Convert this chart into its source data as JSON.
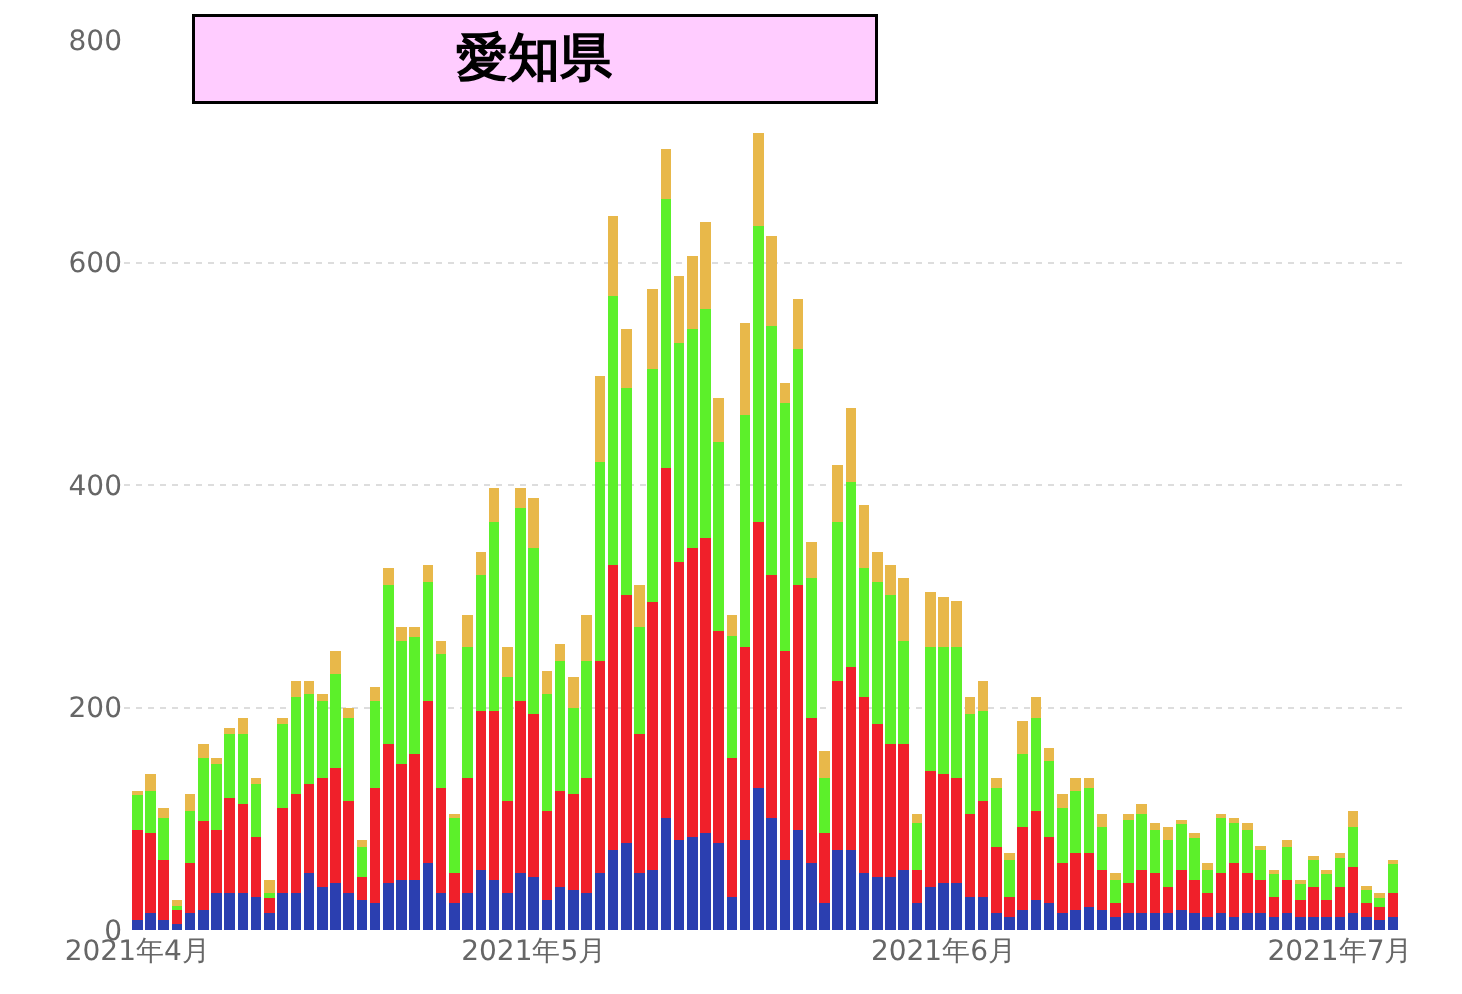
{
  "chart_data": {
    "type": "bar",
    "title": "愛知県",
    "stacked": true,
    "legend": false,
    "grid": "y",
    "x": [
      "2021-04-01",
      "2021-04-02",
      "2021-04-03",
      "2021-04-04",
      "2021-04-05",
      "2021-04-06",
      "2021-04-07",
      "2021-04-08",
      "2021-04-09",
      "2021-04-10",
      "2021-04-11",
      "2021-04-12",
      "2021-04-13",
      "2021-04-14",
      "2021-04-15",
      "2021-04-16",
      "2021-04-17",
      "2021-04-18",
      "2021-04-19",
      "2021-04-20",
      "2021-04-21",
      "2021-04-22",
      "2021-04-23",
      "2021-04-24",
      "2021-04-25",
      "2021-04-26",
      "2021-04-27",
      "2021-04-28",
      "2021-04-29",
      "2021-04-30",
      "2021-05-01",
      "2021-05-02",
      "2021-05-03",
      "2021-05-04",
      "2021-05-05",
      "2021-05-06",
      "2021-05-07",
      "2021-05-08",
      "2021-05-09",
      "2021-05-10",
      "2021-05-11",
      "2021-05-12",
      "2021-05-13",
      "2021-05-14",
      "2021-05-15",
      "2021-05-16",
      "2021-05-17",
      "2021-05-18",
      "2021-05-19",
      "2021-05-20",
      "2021-05-21",
      "2021-05-22",
      "2021-05-23",
      "2021-05-24",
      "2021-05-25",
      "2021-05-26",
      "2021-05-27",
      "2021-05-28",
      "2021-05-29",
      "2021-05-30",
      "2021-05-31",
      "2021-06-01",
      "2021-06-02",
      "2021-06-03",
      "2021-06-04",
      "2021-06-05",
      "2021-06-06",
      "2021-06-07",
      "2021-06-08",
      "2021-06-09",
      "2021-06-10",
      "2021-06-11",
      "2021-06-12",
      "2021-06-13",
      "2021-06-14",
      "2021-06-15",
      "2021-06-16",
      "2021-06-17",
      "2021-06-18",
      "2021-06-19",
      "2021-06-20",
      "2021-06-21",
      "2021-06-22",
      "2021-06-23",
      "2021-06-24",
      "2021-06-25",
      "2021-06-26",
      "2021-06-27",
      "2021-06-28",
      "2021-06-29",
      "2021-06-30",
      "2021-07-01",
      "2021-07-02",
      "2021-07-03",
      "2021-07-04",
      "2021-07-05"
    ],
    "xlim": [
      "2021-03-31",
      "2021-07-06"
    ],
    "xticks": [
      {
        "value": "2021-04-01",
        "label": "2021年4月"
      },
      {
        "value": "2021-05-01",
        "label": "2021年5月"
      },
      {
        "value": "2021-06-01",
        "label": "2021年6月"
      },
      {
        "value": "2021-07-01",
        "label": "2021年7月"
      }
    ],
    "ylim": [
      0,
      800
    ],
    "yticks": [
      0,
      200,
      400,
      600,
      800
    ],
    "series": [
      {
        "color": "#2b3fb0",
        "values": [
          9,
          15,
          9,
          5,
          15,
          18,
          33,
          33,
          33,
          30,
          15,
          33,
          33,
          51,
          39,
          42,
          33,
          27,
          24,
          42,
          45,
          45,
          60,
          33,
          24,
          33,
          54,
          45,
          33,
          51,
          48,
          27,
          39,
          36,
          33,
          51,
          72,
          78,
          51,
          54,
          101,
          81,
          84,
          87,
          78,
          30,
          81,
          128,
          101,
          63,
          90,
          60,
          24,
          72,
          72,
          51,
          48,
          48,
          54,
          24,
          39,
          42,
          42,
          30,
          30,
          15,
          12,
          18,
          27,
          24,
          15,
          18,
          21,
          18,
          12,
          15,
          15,
          15,
          15,
          18,
          15,
          12,
          15,
          12,
          15,
          15,
          12,
          15,
          12,
          12,
          12,
          12,
          15,
          12,
          9,
          12
        ]
      },
      {
        "color": "#f0202a",
        "values": [
          81,
          72,
          54,
          13,
          45,
          80,
          57,
          86,
          80,
          54,
          15,
          77,
          89,
          80,
          98,
          104,
          83,
          21,
          104,
          125,
          104,
          113,
          146,
          95,
          27,
          104,
          143,
          152,
          83,
          155,
          146,
          80,
          86,
          86,
          104,
          191,
          256,
          223,
          125,
          241,
          314,
          250,
          259,
          265,
          191,
          125,
          173,
          239,
          218,
          188,
          220,
          131,
          63,
          152,
          164,
          158,
          137,
          119,
          113,
          30,
          104,
          98,
          95,
          74,
          86,
          60,
          18,
          75,
          80,
          60,
          45,
          51,
          48,
          36,
          12,
          27,
          39,
          36,
          24,
          36,
          30,
          21,
          36,
          48,
          36,
          30,
          18,
          30,
          15,
          27,
          15,
          27,
          42,
          12,
          12,
          21
        ]
      },
      {
        "color": "#5cf02a",
        "values": [
          31,
          38,
          38,
          4,
          47,
          57,
          59,
          57,
          63,
          47,
          3,
          75,
          87,
          81,
          69,
          84,
          75,
          27,
          78,
          143,
          111,
          105,
          107,
          120,
          50,
          117,
          122,
          170,
          111,
          173,
          149,
          105,
          117,
          78,
          105,
          179,
          242,
          186,
          96,
          209,
          242,
          197,
          197,
          206,
          170,
          109,
          209,
          266,
          224,
          223,
          212,
          125,
          50,
          143,
          167,
          116,
          128,
          134,
          93,
          42,
          111,
          114,
          117,
          90,
          81,
          53,
          33,
          65,
          84,
          68,
          50,
          56,
          59,
          39,
          21,
          57,
          50,
          39,
          42,
          42,
          39,
          21,
          50,
          36,
          39,
          27,
          21,
          30,
          15,
          24,
          24,
          27,
          36,
          12,
          9,
          27
        ]
      },
      {
        "color": "#e8b84a",
        "values": [
          4,
          15,
          9,
          5,
          15,
          12,
          6,
          6,
          15,
          6,
          12,
          6,
          15,
          12,
          6,
          21,
          9,
          6,
          12,
          15,
          12,
          9,
          15,
          12,
          3,
          29,
          21,
          30,
          27,
          18,
          45,
          21,
          15,
          27,
          41,
          77,
          72,
          53,
          38,
          72,
          45,
          60,
          66,
          78,
          39,
          19,
          83,
          83,
          81,
          18,
          45,
          33,
          24,
          51,
          66,
          57,
          27,
          27,
          56,
          8,
          50,
          45,
          42,
          15,
          27,
          9,
          6,
          30,
          18,
          12,
          12,
          12,
          9,
          11,
          6,
          5,
          9,
          6,
          12,
          3,
          3,
          6,
          3,
          5,
          6,
          3,
          3,
          6,
          3,
          3,
          3,
          3,
          14,
          3,
          3,
          3
        ]
      }
    ]
  }
}
